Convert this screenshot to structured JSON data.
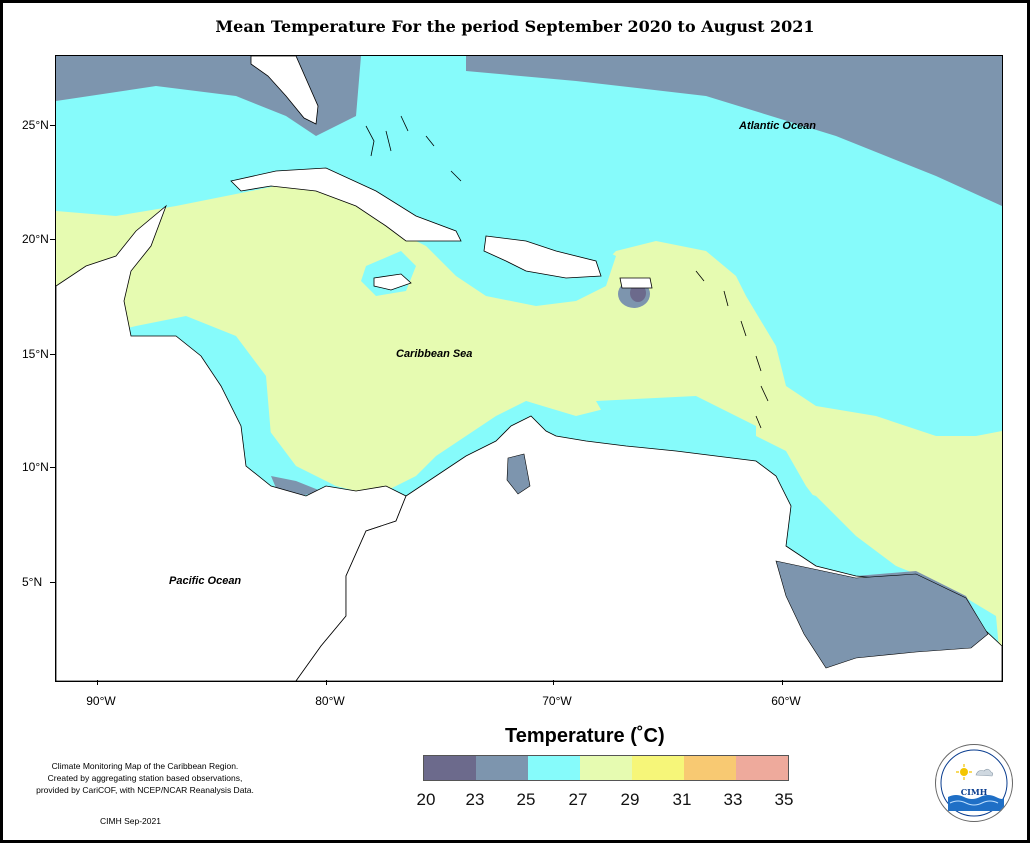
{
  "title": "Mean Temperature For the period September 2020 to August 2021",
  "ocean_labels": {
    "atlantic": "Atlantic Ocean",
    "caribbean": "Caribbean Sea",
    "pacific": "Pacific Ocean"
  },
  "lat_labels": [
    "25°N",
    "20°N",
    "15°N",
    "10°N",
    "5°N"
  ],
  "lon_labels": [
    "90°W",
    "80°W",
    "70°W",
    "60°W"
  ],
  "legend": {
    "title": "Temperature (˚C)",
    "values": [
      "20",
      "23",
      "25",
      "27",
      "29",
      "31",
      "33",
      "35"
    ],
    "colors": [
      "#6c6a8c",
      "#7d95ae",
      "#86fbfb",
      "#e6fbb1",
      "#f6f679",
      "#f8c972",
      "#eeaa9c"
    ]
  },
  "credits": {
    "line1": "Climate Monitoring Map of the Caribbean Region.",
    "line2": "Created by aggregating station based observations,",
    "line3": "provided by CariCOF, with NCEP/NCAR Reanalysis Data.",
    "date": "CIMH Sep-2021"
  },
  "logo": {
    "text": "CIMH"
  }
}
